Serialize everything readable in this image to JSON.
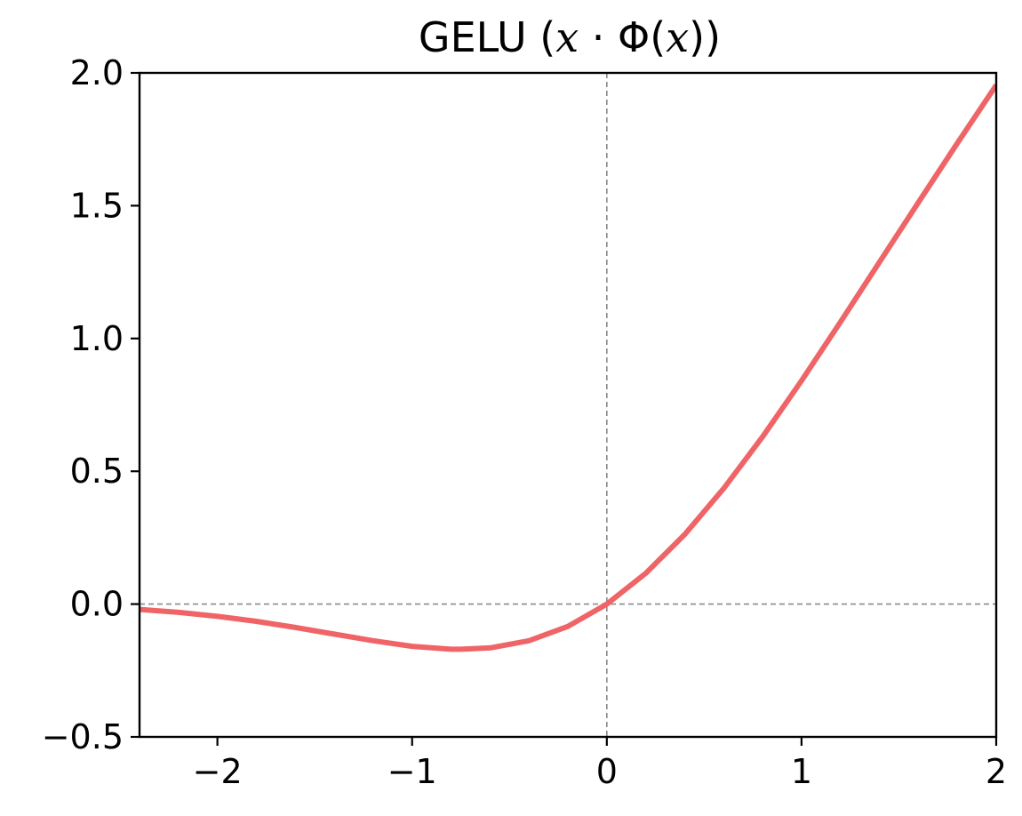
{
  "chart_data": {
    "type": "line",
    "title": "GELU (x · Φ(x))",
    "title_parts": {
      "prefix": "GELU (",
      "var1": "x",
      "dot": " · Φ(",
      "var2": "x",
      "suffix": "))"
    },
    "xlabel": "",
    "ylabel": "",
    "xlim": [
      -2.4,
      2.0
    ],
    "ylim": [
      -0.5,
      2.0
    ],
    "xticks": [
      -2,
      -1,
      0,
      1,
      2
    ],
    "xtick_labels": [
      "−2",
      "−1",
      "0",
      "1",
      "2"
    ],
    "yticks": [
      -0.5,
      0.0,
      0.5,
      1.0,
      1.5,
      2.0
    ],
    "ytick_labels": [
      "−0.5",
      "0.0",
      "0.5",
      "1.0",
      "1.5",
      "2.0"
    ],
    "grid": false,
    "reference_lines": [
      {
        "orientation": "horizontal",
        "value": 0,
        "style": "dashed",
        "color": "#8a8a8a"
      },
      {
        "orientation": "vertical",
        "value": 0,
        "style": "dashed",
        "color": "#8a8a8a"
      }
    ],
    "series": [
      {
        "color": "#ef6467",
        "x": [
          -2.4,
          -2.2,
          -2.0,
          -1.8,
          -1.6,
          -1.4,
          -1.2,
          -1.0,
          -0.8,
          -0.75,
          -0.6,
          -0.4,
          -0.2,
          0.0,
          0.2,
          0.4,
          0.6,
          0.8,
          1.0,
          1.2,
          1.4,
          1.6,
          1.8,
          2.0
        ],
        "y": [
          -0.02,
          -0.031,
          -0.046,
          -0.065,
          -0.088,
          -0.113,
          -0.138,
          -0.159,
          -0.17,
          -0.17,
          -0.165,
          -0.138,
          -0.084,
          0.0,
          0.116,
          0.262,
          0.435,
          0.63,
          0.841,
          1.062,
          1.287,
          1.512,
          1.735,
          1.954
        ]
      }
    ]
  }
}
